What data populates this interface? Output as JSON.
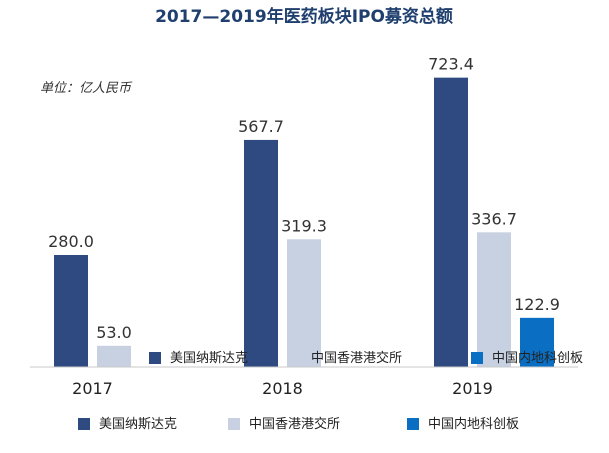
{
  "chart_data": {
    "type": "bar",
    "title": "2017—2019年医药板块IPO募资总额",
    "unit_label": "单位：亿人民币",
    "categories": [
      "2017",
      "2018",
      "2019"
    ],
    "series": [
      {
        "name": "美国纳斯达克",
        "color": "#2f4a80",
        "values": [
          280.0,
          567.7,
          723.4
        ]
      },
      {
        "name": "中国香港港交所",
        "color": "#c7d1e2",
        "values": [
          53.0,
          319.3,
          336.7
        ]
      },
      {
        "name": "中国内地科创板",
        "color": "#0a6fc2",
        "values": [
          null,
          null,
          122.9
        ]
      }
    ],
    "value_labels": [
      [
        "280.0",
        "567.7",
        "723.4"
      ],
      [
        "53.0",
        "319.3",
        "336.7"
      ],
      [
        "",
        "",
        "122.9"
      ]
    ],
    "ylim": [
      0,
      800
    ],
    "legend_position": "bottom",
    "grid": false
  }
}
